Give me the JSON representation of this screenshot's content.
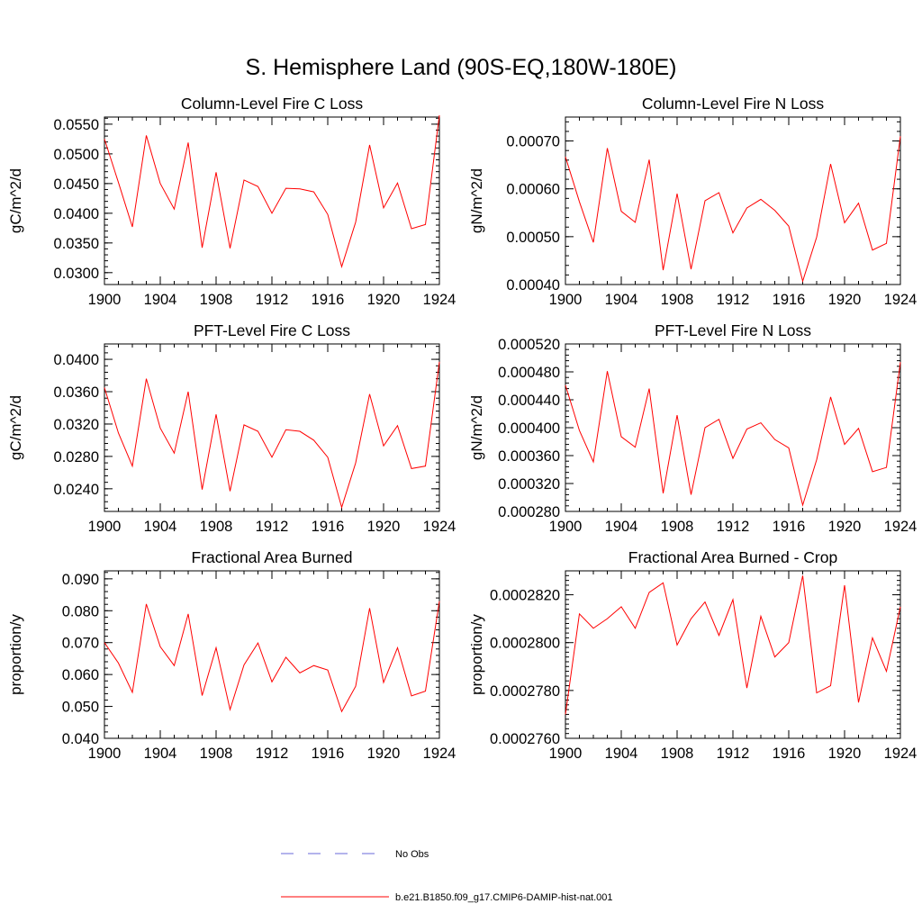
{
  "page_title": "S. Hemisphere Land (90S-EQ,180W-180E)",
  "legend": [
    {
      "label": "No Obs",
      "color": "#6a6ad8",
      "dash": true
    },
    {
      "label": "b.e21.B1850.f09_g17.CMIP6-DAMIP-hist-nat.001",
      "color": "#ff0000",
      "dash": false
    }
  ],
  "chart_data": [
    {
      "type": "line",
      "title": "Column-Level Fire C Loss",
      "ylabel": "gC/m^2/d",
      "xlim": [
        1900,
        1924
      ],
      "ylim": [
        0.028,
        0.0562
      ],
      "yticks": [
        0.03,
        0.035,
        0.04,
        0.045,
        0.05,
        0.055
      ],
      "ytick_labels": [
        "0.0300",
        "0.0350",
        "0.0400",
        "0.0450",
        "0.0500",
        "0.0550"
      ],
      "yminor_step": 0.001,
      "xticks": [
        1900,
        1904,
        1908,
        1912,
        1916,
        1920,
        1924
      ],
      "x": [
        1900,
        1901,
        1902,
        1903,
        1904,
        1905,
        1906,
        1907,
        1908,
        1909,
        1910,
        1911,
        1912,
        1913,
        1914,
        1915,
        1916,
        1917,
        1918,
        1919,
        1920,
        1921,
        1922,
        1923,
        1924
      ],
      "series": [
        {
          "color": "#ff0000",
          "values": [
            0.0525,
            0.0452,
            0.0377,
            0.0531,
            0.045,
            0.0407,
            0.0519,
            0.0342,
            0.0469,
            0.0341,
            0.0456,
            0.0445,
            0.04,
            0.0442,
            0.0441,
            0.0436,
            0.0398,
            0.031,
            0.0385,
            0.0515,
            0.0409,
            0.0451,
            0.0374,
            0.0381,
            0.0565
          ]
        }
      ]
    },
    {
      "type": "line",
      "title": "Column-Level Fire N Loss",
      "ylabel": "gN/m^2/d",
      "xlim": [
        1900,
        1924
      ],
      "ylim": [
        0.0004,
        0.00075
      ],
      "yticks": [
        0.0004,
        0.0005,
        0.0006,
        0.0007
      ],
      "ytick_labels": [
        "0.00040",
        "0.00050",
        "0.00060",
        "0.00070"
      ],
      "yminor_step": 2e-05,
      "xticks": [
        1900,
        1904,
        1908,
        1912,
        1916,
        1920,
        1924
      ],
      "x": [
        1900,
        1901,
        1902,
        1903,
        1904,
        1905,
        1906,
        1907,
        1908,
        1909,
        1910,
        1911,
        1912,
        1913,
        1914,
        1915,
        1916,
        1917,
        1918,
        1919,
        1920,
        1921,
        1922,
        1923,
        1924
      ],
      "series": [
        {
          "color": "#ff0000",
          "values": [
            0.000667,
            0.000573,
            0.000488,
            0.000685,
            0.000553,
            0.00053,
            0.000661,
            0.00043,
            0.00059,
            0.000432,
            0.000575,
            0.000592,
            0.000508,
            0.00056,
            0.000578,
            0.000555,
            0.000522,
            0.000407,
            0.000499,
            0.000652,
            0.000529,
            0.00057,
            0.000472,
            0.000486,
            0.00071
          ]
        }
      ]
    },
    {
      "type": "line",
      "title": "PFT-Level Fire C Loss",
      "ylabel": "gC/m^2/d",
      "xlim": [
        1900,
        1924
      ],
      "ylim": [
        0.0212,
        0.0419
      ],
      "yticks": [
        0.024,
        0.028,
        0.032,
        0.036,
        0.04
      ],
      "ytick_labels": [
        "0.0240",
        "0.0280",
        "0.0320",
        "0.0360",
        "0.0400"
      ],
      "yminor_step": 0.0008,
      "xticks": [
        1900,
        1904,
        1908,
        1912,
        1916,
        1920,
        1924
      ],
      "x": [
        1900,
        1901,
        1902,
        1903,
        1904,
        1905,
        1906,
        1907,
        1908,
        1909,
        1910,
        1911,
        1912,
        1913,
        1914,
        1915,
        1916,
        1917,
        1918,
        1919,
        1920,
        1921,
        1922,
        1923,
        1924
      ],
      "series": [
        {
          "color": "#ff0000",
          "values": [
            0.0365,
            0.0309,
            0.0268,
            0.0376,
            0.0315,
            0.0284,
            0.036,
            0.0239,
            0.0332,
            0.0237,
            0.0319,
            0.0311,
            0.0279,
            0.0313,
            0.0311,
            0.03,
            0.0279,
            0.0217,
            0.0272,
            0.0357,
            0.0293,
            0.0318,
            0.0265,
            0.0268,
            0.0397
          ]
        }
      ]
    },
    {
      "type": "line",
      "title": "PFT-Level Fire N Loss",
      "ylabel": "gN/m^2/d",
      "xlim": [
        1900,
        1924
      ],
      "ylim": [
        0.00028,
        0.00052
      ],
      "yticks": [
        0.00028,
        0.00032,
        0.00036,
        0.0004,
        0.00044,
        0.00048,
        0.00052
      ],
      "ytick_labels": [
        "0.000280",
        "0.000320",
        "0.000360",
        "0.000400",
        "0.000440",
        "0.000480",
        "0.000520"
      ],
      "yminor_step": 8e-06,
      "xticks": [
        1900,
        1904,
        1908,
        1912,
        1916,
        1920,
        1924
      ],
      "x": [
        1900,
        1901,
        1902,
        1903,
        1904,
        1905,
        1906,
        1907,
        1908,
        1909,
        1910,
        1911,
        1912,
        1913,
        1914,
        1915,
        1916,
        1917,
        1918,
        1919,
        1920,
        1921,
        1922,
        1923,
        1924
      ],
      "series": [
        {
          "color": "#ff0000",
          "values": [
            0.000461,
            0.000396,
            0.000351,
            0.000481,
            0.000387,
            0.000372,
            0.000456,
            0.000306,
            0.000418,
            0.000304,
            0.0004,
            0.000412,
            0.000356,
            0.000398,
            0.000407,
            0.000383,
            0.000371,
            0.000289,
            0.000354,
            0.000444,
            0.000376,
            0.000399,
            0.000337,
            0.000343,
            0.000494
          ]
        }
      ]
    },
    {
      "type": "line",
      "title": "Fractional Area Burned",
      "ylabel": "proportion/y",
      "xlim": [
        1900,
        1924
      ],
      "ylim": [
        0.04,
        0.0925
      ],
      "yticks": [
        0.04,
        0.05,
        0.06,
        0.07,
        0.08,
        0.09
      ],
      "ytick_labels": [
        "0.040",
        "0.050",
        "0.060",
        "0.070",
        "0.080",
        "0.090"
      ],
      "yminor_step": 0.002,
      "xticks": [
        1900,
        1904,
        1908,
        1912,
        1916,
        1920,
        1924
      ],
      "x": [
        1900,
        1901,
        1902,
        1903,
        1904,
        1905,
        1906,
        1907,
        1908,
        1909,
        1910,
        1911,
        1912,
        1913,
        1914,
        1915,
        1916,
        1917,
        1918,
        1919,
        1920,
        1921,
        1922,
        1923,
        1924
      ],
      "series": [
        {
          "color": "#ff0000",
          "values": [
            0.07,
            0.0636,
            0.0544,
            0.0821,
            0.0687,
            0.0628,
            0.079,
            0.0534,
            0.0684,
            0.049,
            0.063,
            0.0699,
            0.0577,
            0.0654,
            0.0605,
            0.0628,
            0.0614,
            0.0484,
            0.0563,
            0.0808,
            0.0575,
            0.0684,
            0.0533,
            0.0548,
            0.083
          ]
        }
      ]
    },
    {
      "type": "line",
      "title": "Fractional Area Burned - Crop",
      "ylabel": "proportion/y",
      "xlim": [
        1900,
        1924
      ],
      "ylim": [
        0.000276,
        0.000283
      ],
      "yticks": [
        0.000276,
        0.000278,
        0.00028,
        0.000282
      ],
      "ytick_labels": [
        "0.0002760",
        "0.0002780",
        "0.0002800",
        "0.0002820"
      ],
      "yminor_step": 2e-07,
      "xticks": [
        1900,
        1904,
        1908,
        1912,
        1916,
        1920,
        1924
      ],
      "x": [
        1900,
        1901,
        1902,
        1903,
        1904,
        1905,
        1906,
        1907,
        1908,
        1909,
        1910,
        1911,
        1912,
        1913,
        1914,
        1915,
        1916,
        1917,
        1918,
        1919,
        1920,
        1921,
        1922,
        1923,
        1924
      ],
      "series": [
        {
          "color": "#ff0000",
          "values": [
            0.000277,
            0.0002812,
            0.0002806,
            0.000281,
            0.0002815,
            0.0002806,
            0.0002821,
            0.0002825,
            0.0002799,
            0.000281,
            0.0002817,
            0.0002803,
            0.0002818,
            0.0002781,
            0.0002811,
            0.0002794,
            0.00028,
            0.0002828,
            0.0002779,
            0.0002782,
            0.0002824,
            0.0002775,
            0.0002802,
            0.0002788,
            0.0002815
          ]
        }
      ]
    }
  ]
}
